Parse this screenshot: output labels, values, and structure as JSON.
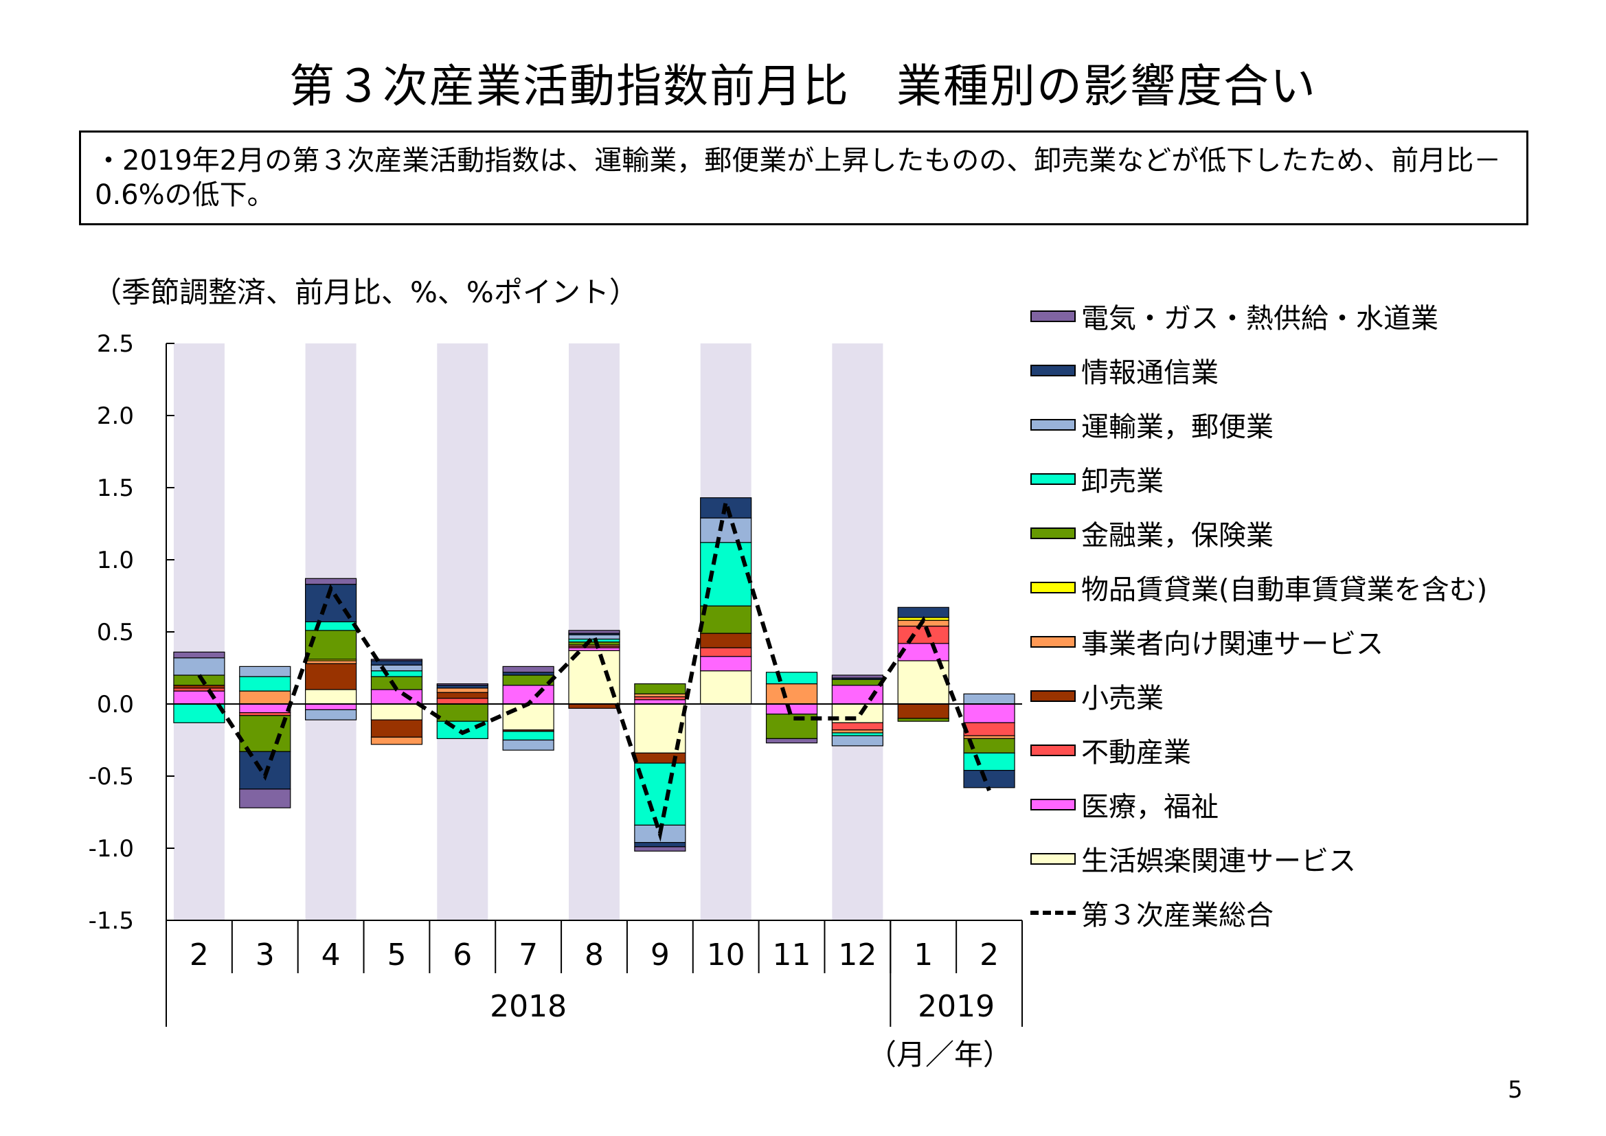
{
  "title": "第３次産業活動指数前月比　業種別の影響度合い",
  "summary": "・2019年2月の第３次産業活動指数は、運輸業，郵便業が上昇したものの、卸売業などが低下したため、前月比－0.6%の低下。",
  "unit_label": "（季節調整済、前月比、%、%ポイント）",
  "axis_unit_label": "（月／年）",
  "page_number": "5",
  "chart_data": {
    "type": "bar",
    "stacked": true,
    "categories": [
      "2",
      "3",
      "4",
      "5",
      "6",
      "7",
      "8",
      "9",
      "10",
      "11",
      "12",
      "1",
      "2"
    ],
    "year_groups": [
      {
        "label": "2018",
        "start": 0,
        "end": 10
      },
      {
        "label": "2019",
        "start": 11,
        "end": 12
      }
    ],
    "ylim": [
      -1.5,
      2.5
    ],
    "yticks": [
      "2.5",
      "2.0",
      "1.5",
      "1.0",
      "0.5",
      "0.0",
      "-0.5",
      "-1.0",
      "-1.5"
    ],
    "ytick_values": [
      2.5,
      2.0,
      1.5,
      1.0,
      0.5,
      0.0,
      -0.5,
      -1.0,
      -1.5
    ],
    "shaded_categories": [
      0,
      2,
      4,
      6,
      8,
      10
    ],
    "legend_position": "right",
    "series": [
      {
        "name": "生活娯楽関連サービス",
        "color": "#FFFFCC",
        "values": [
          0.0,
          0.0,
          0.1,
          -0.11,
          0.0,
          -0.18,
          0.37,
          -0.34,
          0.23,
          0.0,
          -0.13,
          0.3,
          0.0
        ]
      },
      {
        "name": "医療，福祉",
        "color": "#FF66FF",
        "values": [
          0.09,
          -0.06,
          -0.04,
          0.1,
          0.0,
          0.13,
          0.02,
          0.03,
          0.1,
          -0.07,
          0.13,
          0.12,
          -0.13
        ]
      },
      {
        "name": "不動産業",
        "color": "#FF5050",
        "values": [
          0.02,
          -0.02,
          0.0,
          0.0,
          0.04,
          0.0,
          0.01,
          0.02,
          0.06,
          0.0,
          -0.05,
          0.12,
          -0.09
        ]
      },
      {
        "name": "小売業",
        "color": "#993300",
        "values": [
          0.02,
          0.0,
          0.18,
          -0.12,
          0.04,
          -0.01,
          -0.03,
          -0.07,
          0.1,
          0.0,
          0.0,
          -0.1,
          0.0
        ]
      },
      {
        "name": "事業者向け関連サービス",
        "color": "#FF9955",
        "values": [
          0.0,
          0.09,
          0.02,
          -0.05,
          0.03,
          0.0,
          0.01,
          0.02,
          0.0,
          0.14,
          -0.02,
          0.04,
          -0.02
        ]
      },
      {
        "name": "物品賃貸業(自動車賃貸業を含む)",
        "color": "#FFFF00",
        "values": [
          0.0,
          0.0,
          0.01,
          0.0,
          0.0,
          0.0,
          0.0,
          0.0,
          0.0,
          0.0,
          0.0,
          0.02,
          0.0
        ]
      },
      {
        "name": "金融業，保険業",
        "color": "#669900",
        "values": [
          0.07,
          -0.25,
          0.2,
          0.09,
          -0.12,
          0.07,
          0.02,
          0.07,
          0.19,
          -0.17,
          0.04,
          -0.02,
          -0.1
        ]
      },
      {
        "name": "卸売業",
        "color": "#00FFCC",
        "values": [
          -0.13,
          0.1,
          0.06,
          0.04,
          -0.12,
          -0.06,
          0.02,
          -0.43,
          0.44,
          0.08,
          -0.02,
          0.0,
          -0.12
        ]
      },
      {
        "name": "運輸業，郵便業",
        "color": "#99B3D9",
        "values": [
          0.12,
          0.07,
          -0.07,
          0.04,
          0.0,
          -0.07,
          0.03,
          -0.12,
          0.17,
          0.0,
          -0.07,
          0.0,
          0.07
        ]
      },
      {
        "name": "情報通信業",
        "color": "#1F3F73",
        "values": [
          0.0,
          -0.26,
          0.26,
          0.03,
          0.02,
          0.02,
          0.01,
          -0.03,
          0.14,
          0.0,
          0.01,
          0.07,
          -0.12
        ]
      },
      {
        "name": "電気・ガス・熱供給・水道業",
        "color": "#8064A2",
        "values": [
          0.04,
          -0.13,
          0.04,
          0.01,
          0.01,
          0.04,
          0.02,
          -0.03,
          0.0,
          -0.03,
          0.02,
          0.0,
          0.0
        ]
      }
    ],
    "total": {
      "name": "第３次産業総合",
      "values": [
        0.2,
        -0.5,
        0.8,
        0.1,
        -0.2,
        0.0,
        0.47,
        -0.9,
        1.4,
        -0.1,
        -0.1,
        0.58,
        -0.6
      ]
    },
    "legend_order": [
      "電気・ガス・熱供給・水道業",
      "情報通信業",
      "運輸業，郵便業",
      "卸売業",
      "金融業，保険業",
      "物品賃貸業(自動車賃貸業を含む)",
      "事業者向け関連サービス",
      "小売業",
      "不動産業",
      "医療，福祉",
      "生活娯楽関連サービス",
      "第３次産業総合"
    ]
  }
}
